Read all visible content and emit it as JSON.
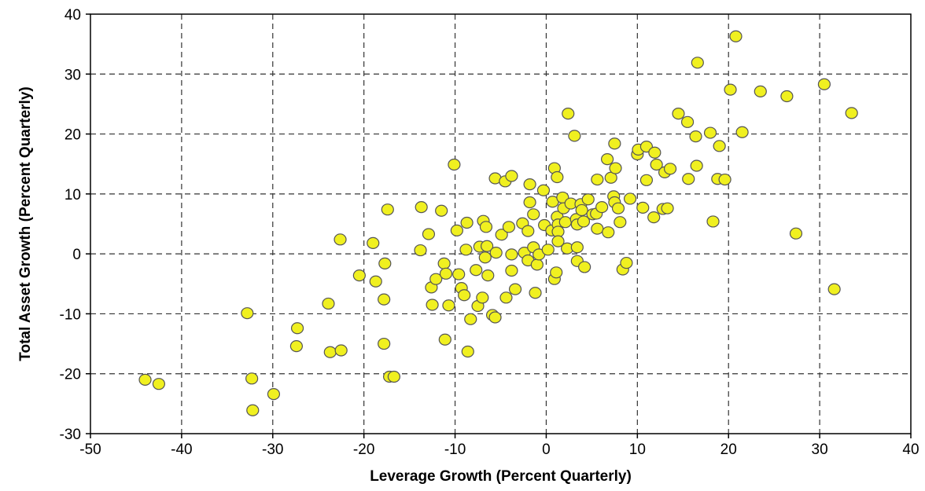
{
  "chart_data": {
    "type": "scatter",
    "title": "",
    "xlabel": "Leverage Growth (Percent Quarterly)",
    "ylabel": "Total Asset Growth (Percent Quarterly)",
    "xlim": [
      -50,
      40
    ],
    "ylim": [
      -30,
      40
    ],
    "xticks": [
      "-50",
      "-40",
      "-30",
      "-20",
      "-10",
      "0",
      "10",
      "20",
      "30",
      "40"
    ],
    "yticks": [
      "-30",
      "-20",
      "-10",
      "0",
      "10",
      "20",
      "30",
      "40"
    ],
    "grid": true,
    "marker_color": "#f0f020",
    "marker_edge_color": "#555555",
    "points": [
      [
        -44,
        -21
      ],
      [
        -42.5,
        -21.7
      ],
      [
        -32.8,
        -9.9
      ],
      [
        -32.3,
        -20.8
      ],
      [
        -32.2,
        -26.1
      ],
      [
        -29.9,
        -23.4
      ],
      [
        -27.3,
        -12.4
      ],
      [
        -27.4,
        -15.4
      ],
      [
        -23.9,
        -8.3
      ],
      [
        -23.7,
        -16.4
      ],
      [
        -22.5,
        -16.1
      ],
      [
        -22.6,
        2.4
      ],
      [
        -20.5,
        -3.6
      ],
      [
        -19,
        1.8
      ],
      [
        -18.7,
        -4.6
      ],
      [
        -17.8,
        -7.6
      ],
      [
        -17.8,
        -15
      ],
      [
        -17.7,
        -1.6
      ],
      [
        -17.4,
        7.4
      ],
      [
        -17.2,
        -20.5
      ],
      [
        -16.7,
        -20.5
      ],
      [
        -13.7,
        7.8
      ],
      [
        -13.8,
        0.6
      ],
      [
        -12.9,
        3.3
      ],
      [
        -12.6,
        -5.6
      ],
      [
        -12.1,
        -4.2
      ],
      [
        -12.5,
        -8.5
      ],
      [
        -11.5,
        7.2
      ],
      [
        -11.2,
        -1.6
      ],
      [
        -11.1,
        -14.3
      ],
      [
        -10.7,
        -8.6
      ],
      [
        -11,
        -3.3
      ],
      [
        -10.1,
        14.9
      ],
      [
        -9.8,
        3.9
      ],
      [
        -9.6,
        -3.4
      ],
      [
        -9.3,
        -5.7
      ],
      [
        -8.7,
        5.2
      ],
      [
        -8.8,
        0.7
      ],
      [
        -9,
        -6.9
      ],
      [
        -8.3,
        -10.9
      ],
      [
        -8.6,
        -16.3
      ],
      [
        -7.7,
        -2.7
      ],
      [
        -7.5,
        -8.7
      ],
      [
        -7.3,
        1.2
      ],
      [
        -7,
        -7.3
      ],
      [
        -6.9,
        5.5
      ],
      [
        -6.6,
        4.5
      ],
      [
        -6.7,
        -0.6
      ],
      [
        -6.4,
        -3.6
      ],
      [
        -6.5,
        1.3
      ],
      [
        -5.6,
        12.6
      ],
      [
        -5.9,
        -10.2
      ],
      [
        -5.6,
        -10.6
      ],
      [
        -5.5,
        0.2
      ],
      [
        -4.9,
        3.2
      ],
      [
        -4.5,
        12.1
      ],
      [
        -4.4,
        -7.3
      ],
      [
        -4.1,
        4.5
      ],
      [
        -3.8,
        13
      ],
      [
        -3.8,
        -0.1
      ],
      [
        -3.8,
        -2.8
      ],
      [
        -3.4,
        -5.9
      ],
      [
        -2.6,
        5.1
      ],
      [
        -2.4,
        0.2
      ],
      [
        -1.8,
        11.6
      ],
      [
        -1.8,
        8.6
      ],
      [
        -2,
        3.8
      ],
      [
        -2,
        -1.1
      ],
      [
        -1.4,
        6.6
      ],
      [
        -1.4,
        1.1
      ],
      [
        -1.2,
        -6.5
      ],
      [
        -1,
        -1.8
      ],
      [
        -0.8,
        -0.1
      ],
      [
        -0.3,
        10.6
      ],
      [
        -0.2,
        4.8
      ],
      [
        0.2,
        0.7
      ],
      [
        0.6,
        3.9
      ],
      [
        0.7,
        8.7
      ],
      [
        0.9,
        14.3
      ],
      [
        0.9,
        -4.2
      ],
      [
        1.1,
        -3.1
      ],
      [
        1.2,
        12.8
      ],
      [
        1.2,
        6.2
      ],
      [
        1.3,
        4.9
      ],
      [
        1.3,
        3.7
      ],
      [
        1.3,
        2.1
      ],
      [
        1.8,
        9.4
      ],
      [
        1.9,
        7.6
      ],
      [
        2.1,
        5.3
      ],
      [
        2.3,
        0.9
      ],
      [
        2.4,
        23.4
      ],
      [
        2.7,
        8.4
      ],
      [
        3.1,
        19.7
      ],
      [
        3.3,
        5.8
      ],
      [
        3.4,
        4.9
      ],
      [
        3.4,
        -1.2
      ],
      [
        3.4,
        1.1
      ],
      [
        3.8,
        8.3
      ],
      [
        3.9,
        7.3
      ],
      [
        4.1,
        5.4
      ],
      [
        4.2,
        -2.2
      ],
      [
        4.6,
        9.1
      ],
      [
        5.1,
        6.6
      ],
      [
        5.5,
        6.7
      ],
      [
        5.6,
        4.2
      ],
      [
        5.6,
        12.4
      ],
      [
        6.1,
        7.8
      ],
      [
        6.7,
        15.8
      ],
      [
        6.8,
        3.6
      ],
      [
        7.1,
        12.7
      ],
      [
        7.5,
        18.4
      ],
      [
        7.4,
        9.6
      ],
      [
        7.5,
        8.6
      ],
      [
        7.6,
        14.3
      ],
      [
        7.9,
        7.6
      ],
      [
        8.1,
        5.3
      ],
      [
        8.4,
        -2.6
      ],
      [
        8.8,
        -1.5
      ],
      [
        9.2,
        9.2
      ],
      [
        10,
        16.6
      ],
      [
        10.1,
        17.4
      ],
      [
        10.6,
        7.7
      ],
      [
        11,
        12.3
      ],
      [
        11,
        17.9
      ],
      [
        11.8,
        6.1
      ],
      [
        11.9,
        16.9
      ],
      [
        12.1,
        14.9
      ],
      [
        12.8,
        7.5
      ],
      [
        13,
        13.6
      ],
      [
        13.6,
        14.2
      ],
      [
        13.3,
        7.6
      ],
      [
        14.5,
        23.4
      ],
      [
        15.5,
        22
      ],
      [
        15.6,
        12.5
      ],
      [
        16.4,
        19.6
      ],
      [
        16.5,
        14.7
      ],
      [
        16.6,
        31.9
      ],
      [
        18,
        20.2
      ],
      [
        18.3,
        5.4
      ],
      [
        18.8,
        12.5
      ],
      [
        19,
        18
      ],
      [
        19.6,
        12.4
      ],
      [
        20.2,
        27.4
      ],
      [
        20.8,
        36.3
      ],
      [
        21.5,
        20.3
      ],
      [
        23.5,
        27.1
      ],
      [
        26.4,
        26.3
      ],
      [
        27.4,
        3.4
      ],
      [
        30.5,
        28.3
      ],
      [
        31.6,
        -5.9
      ],
      [
        33.5,
        23.5
      ]
    ]
  }
}
